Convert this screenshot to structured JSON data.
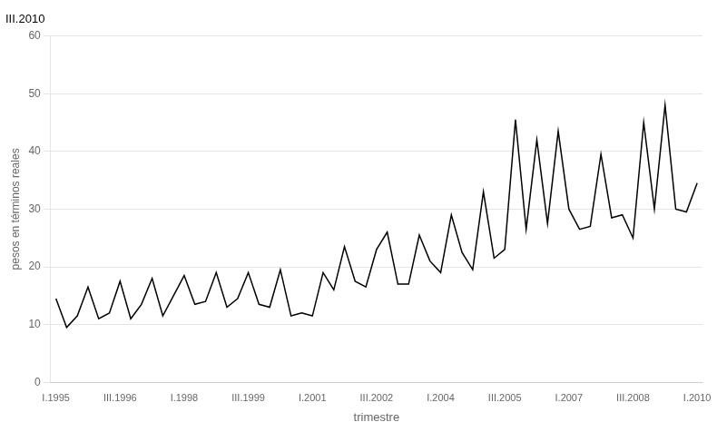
{
  "chart_data": {
    "type": "line",
    "title": "III.2010",
    "xlabel": "trimestre",
    "ylabel": "pesos en términos reales",
    "categories": [
      "I.1995",
      null,
      null,
      null,
      null,
      null,
      "III.1996",
      null,
      null,
      null,
      null,
      null,
      "I.1998",
      null,
      null,
      null,
      null,
      null,
      "III.1999",
      null,
      null,
      null,
      null,
      null,
      "I.2001",
      null,
      null,
      null,
      null,
      null,
      "III.2002",
      null,
      null,
      null,
      null,
      null,
      "I.2004",
      null,
      null,
      null,
      null,
      null,
      "III.2005",
      null,
      null,
      null,
      null,
      null,
      "I.2007",
      null,
      null,
      null,
      null,
      null,
      "III.2008",
      null,
      null,
      null,
      null,
      null,
      "I.2010"
    ],
    "values": [
      14.5,
      9.5,
      11.5,
      16.5,
      11.0,
      12.0,
      17.5,
      11.0,
      13.5,
      18.0,
      11.5,
      15.0,
      18.5,
      13.5,
      14.0,
      19.0,
      13.0,
      14.5,
      19.0,
      13.5,
      13.0,
      19.5,
      11.5,
      12.0,
      11.5,
      19.0,
      16.0,
      23.5,
      17.5,
      16.5,
      23.0,
      26.0,
      17.0,
      17.0,
      25.5,
      21.0,
      19.0,
      29.0,
      22.5,
      19.5,
      33.0,
      21.5,
      23.0,
      45.5,
      26.5,
      42.0,
      27.5,
      43.5,
      30.0,
      26.5,
      27.0,
      39.5,
      28.5,
      29.0,
      25.0,
      45.0,
      30.0,
      48.0,
      30.0,
      29.5,
      34.5
    ],
    "color": "#000000",
    "ylim": [
      0,
      60
    ],
    "yticks": [
      0,
      10,
      20,
      30,
      40,
      50,
      60
    ],
    "grid": "y"
  }
}
